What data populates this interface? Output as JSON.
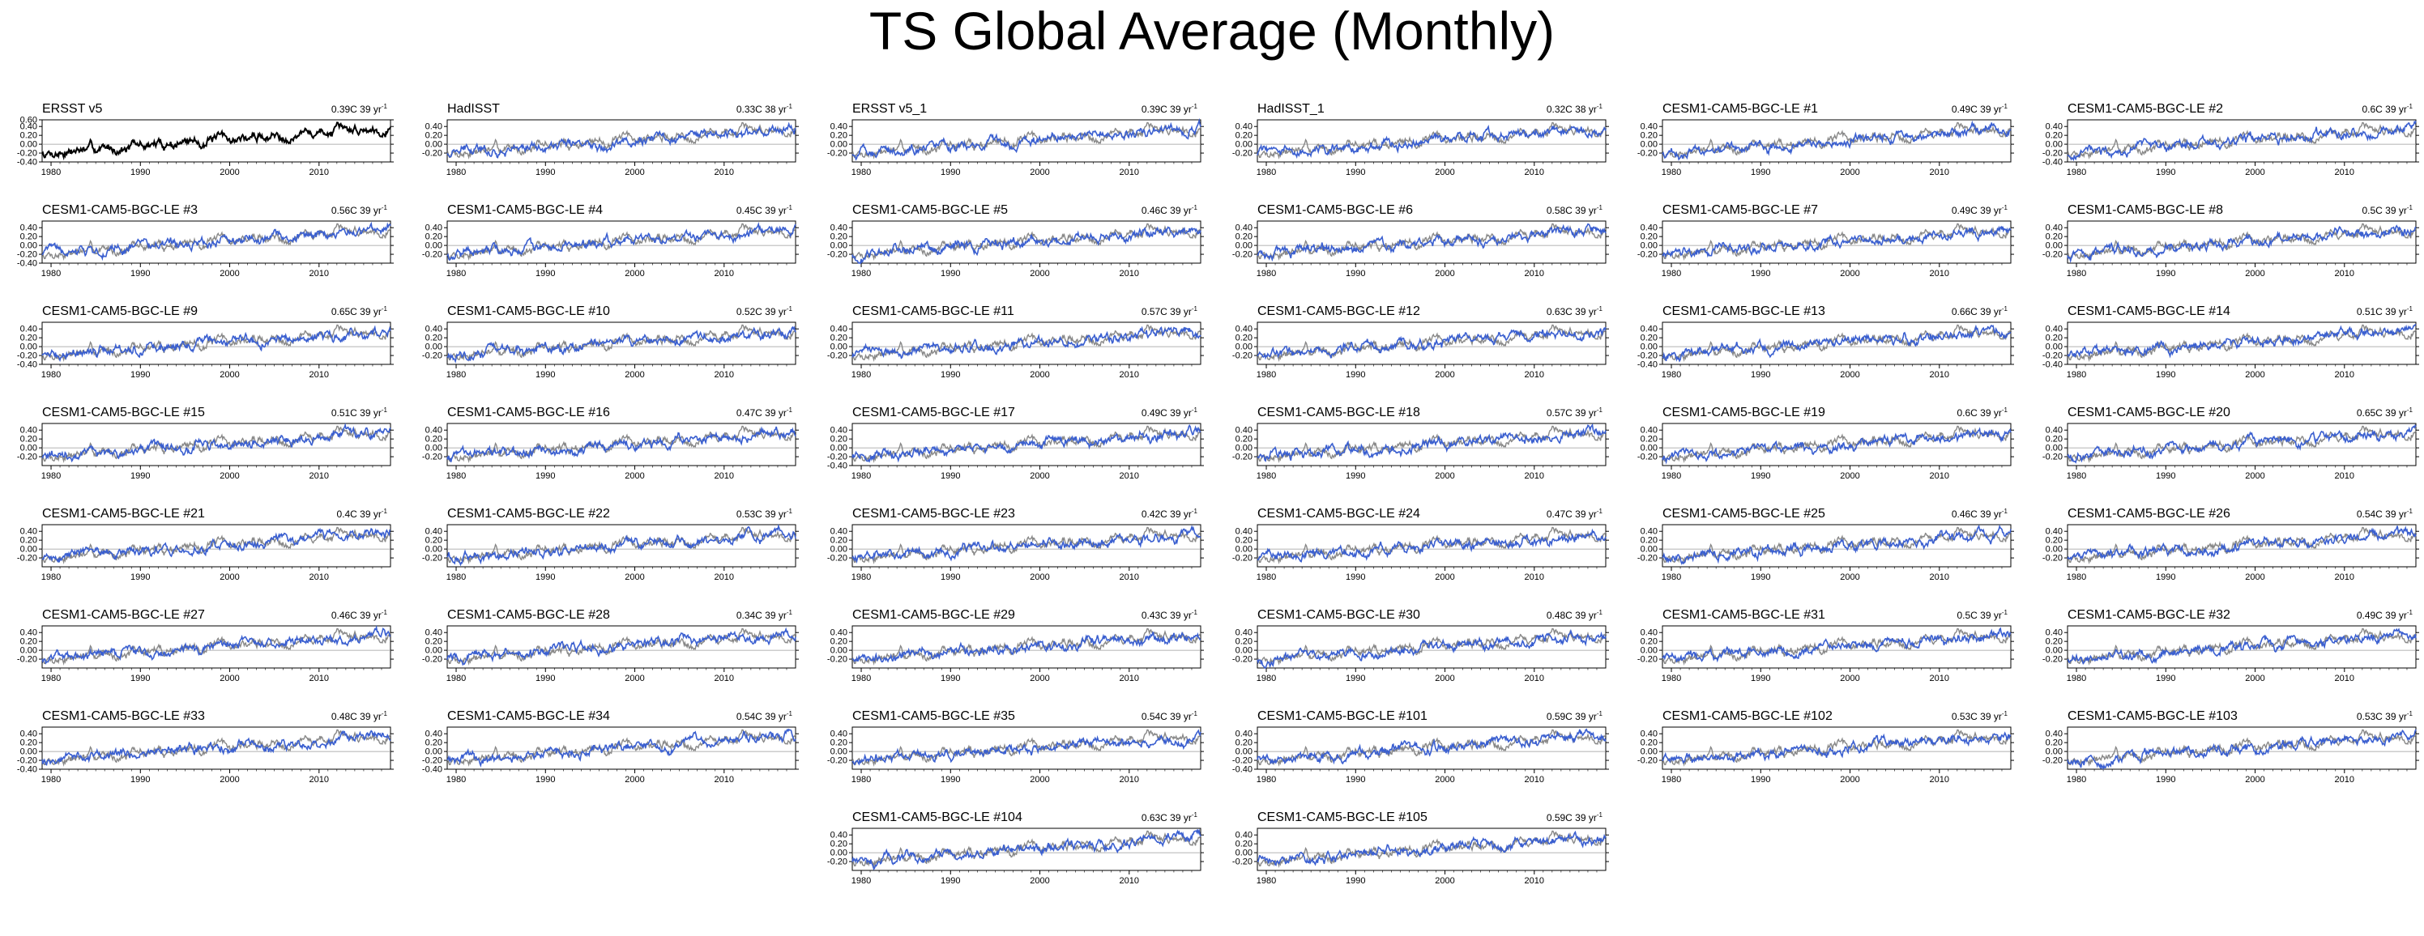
{
  "title": "TS Global Average (Monthly)",
  "colors": {
    "model_line": "#3a5fd0",
    "obs_line": "#888888",
    "ersst_line": "#000000",
    "frame": "#000000"
  },
  "chart_data": {
    "type": "line",
    "xlim": [
      1979,
      2018
    ],
    "xticks": [
      "1980",
      "1990",
      "2000",
      "2010"
    ],
    "yticks_full": [
      "0.60",
      "0.40",
      "0.20",
      "0.00",
      "-0.20",
      "-0.40"
    ],
    "yticks_std": [
      "0.40",
      "0.20",
      "0.00",
      "-0.20",
      "-0.40"
    ],
    "yticks_short": [
      "0.40",
      "0.20",
      "0.00",
      "-0.20"
    ],
    "trend_unit": "yr",
    "panels": [
      {
        "name": "ERSST v5",
        "trend": "0.39C 39",
        "yticks": "yticks_full",
        "obs": true
      },
      {
        "name": "HadISST",
        "trend": "0.33C 38",
        "yticks": "yticks_short"
      },
      {
        "name": "ERSST v5_1",
        "trend": "0.39C 39",
        "yticks": "yticks_short"
      },
      {
        "name": "HadISST_1",
        "trend": "0.32C 38",
        "yticks": "yticks_short"
      },
      {
        "name": "CESM1-CAM5-BGC-LE #1",
        "trend": "0.49C 39",
        "yticks": "yticks_short"
      },
      {
        "name": "CESM1-CAM5-BGC-LE #2",
        "trend": "0.6C 39",
        "yticks": "yticks_std"
      },
      {
        "name": "CESM1-CAM5-BGC-LE #3",
        "trend": "0.56C 39",
        "yticks": "yticks_std"
      },
      {
        "name": "CESM1-CAM5-BGC-LE #4",
        "trend": "0.45C 39",
        "yticks": "yticks_short"
      },
      {
        "name": "CESM1-CAM5-BGC-LE #5",
        "trend": "0.46C 39",
        "yticks": "yticks_short"
      },
      {
        "name": "CESM1-CAM5-BGC-LE #6",
        "trend": "0.58C 39",
        "yticks": "yticks_short"
      },
      {
        "name": "CESM1-CAM5-BGC-LE #7",
        "trend": "0.49C 39",
        "yticks": "yticks_short"
      },
      {
        "name": "CESM1-CAM5-BGC-LE #8",
        "trend": "0.5C 39",
        "yticks": "yticks_short"
      },
      {
        "name": "CESM1-CAM5-BGC-LE #9",
        "trend": "0.65C 39",
        "yticks": "yticks_std"
      },
      {
        "name": "CESM1-CAM5-BGC-LE #10",
        "trend": "0.52C 39",
        "yticks": "yticks_short"
      },
      {
        "name": "CESM1-CAM5-BGC-LE #11",
        "trend": "0.57C 39",
        "yticks": "yticks_short"
      },
      {
        "name": "CESM1-CAM5-BGC-LE #12",
        "trend": "0.63C 39",
        "yticks": "yticks_short"
      },
      {
        "name": "CESM1-CAM5-BGC-LE #13",
        "trend": "0.66C 39",
        "yticks": "yticks_std"
      },
      {
        "name": "CESM1-CAM5-BGC-LE #14",
        "trend": "0.51C 39",
        "yticks": "yticks_std"
      },
      {
        "name": "CESM1-CAM5-BGC-LE #15",
        "trend": "0.51C 39",
        "yticks": "yticks_short"
      },
      {
        "name": "CESM1-CAM5-BGC-LE #16",
        "trend": "0.47C 39",
        "yticks": "yticks_short"
      },
      {
        "name": "CESM1-CAM5-BGC-LE #17",
        "trend": "0.49C 39",
        "yticks": "yticks_std"
      },
      {
        "name": "CESM1-CAM5-BGC-LE #18",
        "trend": "0.57C 39",
        "yticks": "yticks_short"
      },
      {
        "name": "CESM1-CAM5-BGC-LE #19",
        "trend": "0.6C 39",
        "yticks": "yticks_short"
      },
      {
        "name": "CESM1-CAM5-BGC-LE #20",
        "trend": "0.65C 39",
        "yticks": "yticks_short"
      },
      {
        "name": "CESM1-CAM5-BGC-LE #21",
        "trend": "0.4C 39",
        "yticks": "yticks_short"
      },
      {
        "name": "CESM1-CAM5-BGC-LE #22",
        "trend": "0.53C 39",
        "yticks": "yticks_short"
      },
      {
        "name": "CESM1-CAM5-BGC-LE #23",
        "trend": "0.42C 39",
        "yticks": "yticks_short"
      },
      {
        "name": "CESM1-CAM5-BGC-LE #24",
        "trend": "0.47C 39",
        "yticks": "yticks_short"
      },
      {
        "name": "CESM1-CAM5-BGC-LE #25",
        "trend": "0.46C 39",
        "yticks": "yticks_short"
      },
      {
        "name": "CESM1-CAM5-BGC-LE #26",
        "trend": "0.54C 39",
        "yticks": "yticks_short"
      },
      {
        "name": "CESM1-CAM5-BGC-LE #27",
        "trend": "0.46C 39",
        "yticks": "yticks_short"
      },
      {
        "name": "CESM1-CAM5-BGC-LE #28",
        "trend": "0.34C 39",
        "yticks": "yticks_short"
      },
      {
        "name": "CESM1-CAM5-BGC-LE #29",
        "trend": "0.43C 39",
        "yticks": "yticks_short"
      },
      {
        "name": "CESM1-CAM5-BGC-LE #30",
        "trend": "0.48C 39",
        "yticks": "yticks_short"
      },
      {
        "name": "CESM1-CAM5-BGC-LE #31",
        "trend": "0.5C 39",
        "yticks": "yticks_short"
      },
      {
        "name": "CESM1-CAM5-BGC-LE #32",
        "trend": "0.49C 39",
        "yticks": "yticks_short"
      },
      {
        "name": "CESM1-CAM5-BGC-LE #33",
        "trend": "0.48C 39",
        "yticks": "yticks_std"
      },
      {
        "name": "CESM1-CAM5-BGC-LE #34",
        "trend": "0.54C 39",
        "yticks": "yticks_std"
      },
      {
        "name": "CESM1-CAM5-BGC-LE #35",
        "trend": "0.54C 39",
        "yticks": "yticks_short"
      },
      {
        "name": "CESM1-CAM5-BGC-LE #101",
        "trend": "0.59C 39",
        "yticks": "yticks_std"
      },
      {
        "name": "CESM1-CAM5-BGC-LE #102",
        "trend": "0.53C 39",
        "yticks": "yticks_short"
      },
      {
        "name": "CESM1-CAM5-BGC-LE #103",
        "trend": "0.53C 39",
        "yticks": "yticks_short"
      },
      {
        "name": "CESM1-CAM5-BGC-LE #104",
        "trend": "0.63C 39",
        "yticks": "yticks_short"
      },
      {
        "name": "CESM1-CAM5-BGC-LE #105",
        "trend": "0.59C 39",
        "yticks": "yticks_short"
      }
    ]
  }
}
